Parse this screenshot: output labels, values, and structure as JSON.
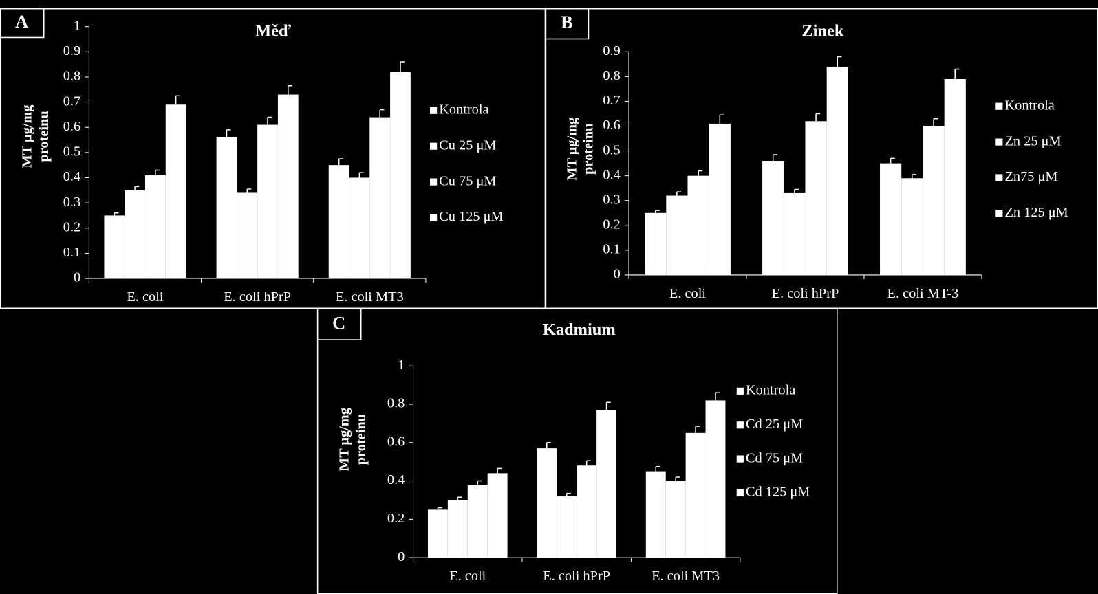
{
  "chart_data": [
    {
      "type": "bar",
      "panel": "A",
      "title": "Měď",
      "y_label": [
        "MT μg/mg",
        "proteinu"
      ],
      "categories": [
        "E. coli",
        "E. coli hPrP",
        "E. coli MT3"
      ],
      "ylim": [
        0,
        1
      ],
      "yticks": [
        0,
        0.1,
        0.2,
        0.3,
        0.4,
        0.5,
        0.6,
        0.7,
        0.8,
        0.9,
        1
      ],
      "series": [
        {
          "name": "Kontrola",
          "color": "#ffffff",
          "values": [
            0.25,
            0.56,
            0.45
          ],
          "errors": [
            0.01,
            0.03,
            0.025
          ]
        },
        {
          "name": "Cu 25 μM",
          "color": "#ffffff",
          "values": [
            0.35,
            0.34,
            0.4
          ],
          "errors": [
            0.015,
            0.015,
            0.02
          ]
        },
        {
          "name": "Cu 75 μM",
          "color": "#ffffff",
          "values": [
            0.41,
            0.61,
            0.64
          ],
          "errors": [
            0.02,
            0.03,
            0.03
          ]
        },
        {
          "name": "Cu 125 μM",
          "color": "#ffffff",
          "values": [
            0.69,
            0.73,
            0.82
          ],
          "errors": [
            0.035,
            0.035,
            0.04
          ]
        }
      ]
    },
    {
      "type": "bar",
      "panel": "B",
      "title": "Zinek",
      "y_label": [
        "MT μg/mg",
        "proteinu"
      ],
      "categories": [
        "E. coli",
        "E. coli hPrP",
        "E. coli MT-3"
      ],
      "ylim": [
        0,
        0.9
      ],
      "yticks": [
        0,
        0.1,
        0.2,
        0.3,
        0.4,
        0.5,
        0.6,
        0.7,
        0.8,
        0.9
      ],
      "series": [
        {
          "name": "Kontrola",
          "color": "#ffffff",
          "values": [
            0.25,
            0.46,
            0.45
          ],
          "errors": [
            0.01,
            0.025,
            0.02
          ]
        },
        {
          "name": "Zn 25 μM",
          "color": "#ffffff",
          "values": [
            0.32,
            0.33,
            0.39
          ],
          "errors": [
            0.015,
            0.015,
            0.015
          ]
        },
        {
          "name": "Zn75 μM",
          "color": "#ffffff",
          "values": [
            0.4,
            0.62,
            0.6
          ],
          "errors": [
            0.02,
            0.03,
            0.03
          ]
        },
        {
          "name": "Zn 125 μM",
          "color": "#ffffff",
          "values": [
            0.61,
            0.84,
            0.79
          ],
          "errors": [
            0.035,
            0.04,
            0.04
          ]
        }
      ]
    },
    {
      "type": "bar",
      "panel": "C",
      "title": "Kadmium",
      "y_label": [
        "MT μg/mg",
        "proteinu"
      ],
      "categories": [
        "E. coli",
        "E. coli hPrP",
        "E. coli MT3"
      ],
      "ylim": [
        0,
        1
      ],
      "yticks": [
        0,
        0.2,
        0.4,
        0.6,
        0.8,
        1
      ],
      "series": [
        {
          "name": "Kontrola",
          "color": "#ffffff",
          "values": [
            0.25,
            0.57,
            0.45
          ],
          "errors": [
            0.01,
            0.03,
            0.025
          ]
        },
        {
          "name": "Cd 25 μM",
          "color": "#ffffff",
          "values": [
            0.3,
            0.32,
            0.4
          ],
          "errors": [
            0.015,
            0.015,
            0.02
          ]
        },
        {
          "name": "Cd 75 μM",
          "color": "#ffffff",
          "values": [
            0.38,
            0.48,
            0.65
          ],
          "errors": [
            0.02,
            0.025,
            0.035
          ]
        },
        {
          "name": "Cd 125 μM",
          "color": "#ffffff",
          "values": [
            0.44,
            0.77,
            0.82
          ],
          "errors": [
            0.025,
            0.04,
            0.04
          ]
        }
      ]
    }
  ]
}
